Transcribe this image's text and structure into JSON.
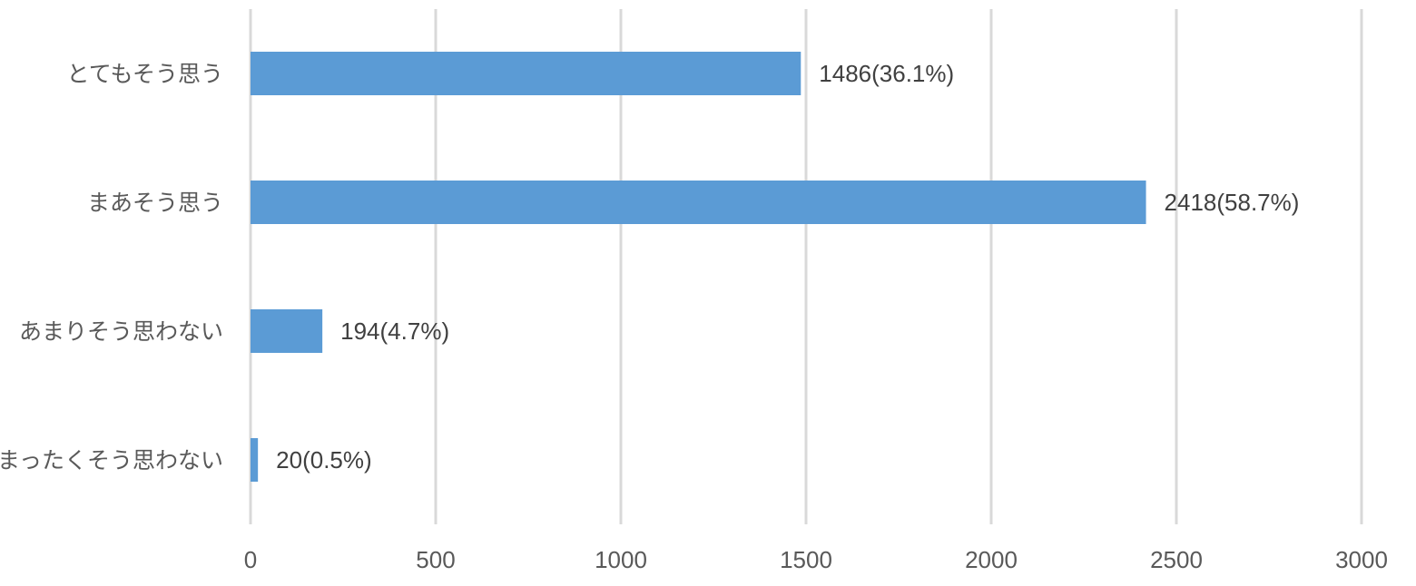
{
  "chart_data": {
    "type": "bar",
    "orientation": "horizontal",
    "categories": [
      "とてもそう思う",
      "まあそう思う",
      "あまりそう思わない",
      "まったくそう思わない"
    ],
    "values": [
      1486,
      2418,
      194,
      20
    ],
    "data_labels": [
      "1486(36.1%)",
      "2418(58.7%)",
      "194(4.7%)",
      "20(0.5%)"
    ],
    "xlim": [
      0,
      3000
    ],
    "x_ticks": [
      "0",
      "500",
      "1000",
      "1500",
      "2000",
      "2500",
      "3000"
    ],
    "grid": true,
    "bar_color": "#5b9bd5",
    "title": "",
    "xlabel": "",
    "ylabel": ""
  }
}
